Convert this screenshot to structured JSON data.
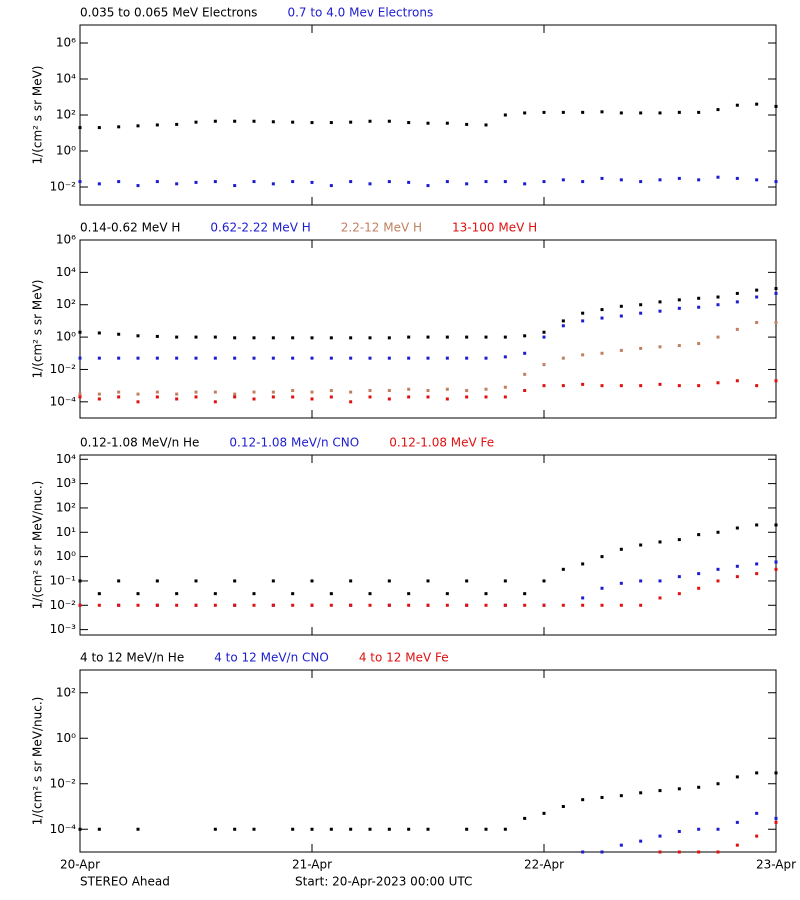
{
  "chart_data": [
    {
      "type": "scatter",
      "log": true,
      "ylabel": "1/(cm² s sr MeV)",
      "xlim": [
        0,
        72
      ],
      "ylim": [
        0.001,
        10000000
      ],
      "yticks": [
        {
          "value": 1000000,
          "label": "10⁶"
        },
        {
          "value": 10000,
          "label": "10⁴"
        },
        {
          "value": 100,
          "label": "10²"
        },
        {
          "value": 1,
          "label": "10⁰"
        },
        {
          "value": 0.01,
          "label": "10⁻²"
        }
      ],
      "x": [
        0,
        2,
        4,
        6,
        8,
        10,
        12,
        14,
        16,
        18,
        20,
        22,
        24,
        26,
        28,
        30,
        32,
        34,
        36,
        38,
        40,
        42,
        44,
        46,
        48,
        50,
        52,
        54,
        56,
        58,
        60,
        62,
        64,
        66,
        68,
        70,
        72
      ],
      "series": [
        {
          "name": "0.035 to 0.065 MeV Electrons",
          "color": "#000000",
          "values": [
            20,
            20,
            22,
            25,
            28,
            30,
            40,
            45,
            45,
            45,
            42,
            40,
            38,
            38,
            40,
            45,
            45,
            38,
            35,
            35,
            30,
            28,
            100,
            130,
            140,
            140,
            140,
            150,
            130,
            130,
            130,
            140,
            140,
            200,
            350,
            400,
            300
          ]
        },
        {
          "name": "0.7 to 4.0 Mev Electrons",
          "color": "#1c1cd0",
          "values": [
            0.02,
            0.015,
            0.02,
            0.012,
            0.02,
            0.015,
            0.018,
            0.02,
            0.012,
            0.02,
            0.015,
            0.02,
            0.018,
            0.012,
            0.02,
            0.015,
            0.02,
            0.018,
            0.012,
            0.02,
            0.015,
            0.02,
            0.02,
            0.015,
            0.02,
            0.025,
            0.02,
            0.03,
            0.025,
            0.02,
            0.025,
            0.03,
            0.025,
            0.035,
            0.03,
            0.025,
            0.02
          ]
        }
      ]
    },
    {
      "type": "scatter",
      "log": true,
      "ylabel": "1/(cm² s sr MeV)",
      "xlim": [
        0,
        72
      ],
      "ylim": [
        1e-05,
        1000000
      ],
      "yticks": [
        {
          "value": 1000000,
          "label": "10⁶"
        },
        {
          "value": 10000,
          "label": "10⁴"
        },
        {
          "value": 100,
          "label": "10²"
        },
        {
          "value": 1,
          "label": "10⁰"
        },
        {
          "value": 0.01,
          "label": "10⁻²"
        },
        {
          "value": 0.0001,
          "label": "10⁻⁴"
        }
      ],
      "x": [
        0,
        2,
        4,
        6,
        8,
        10,
        12,
        14,
        16,
        18,
        20,
        22,
        24,
        26,
        28,
        30,
        32,
        34,
        36,
        38,
        40,
        42,
        44,
        46,
        48,
        50,
        52,
        54,
        56,
        58,
        60,
        62,
        64,
        66,
        68,
        70,
        72
      ],
      "series": [
        {
          "name": "0.14-0.62 MeV H",
          "color": "#000000",
          "values": [
            2,
            1.8,
            1.5,
            1.2,
            1.1,
            1,
            1,
            1,
            0.9,
            0.9,
            0.9,
            0.9,
            0.9,
            0.9,
            0.9,
            0.9,
            0.9,
            1,
            1,
            1,
            1,
            1,
            1,
            1.2,
            2,
            10,
            30,
            50,
            80,
            100,
            150,
            200,
            250,
            300,
            500,
            800,
            1000
          ]
        },
        {
          "name": "0.62-2.22 MeV H",
          "color": "#1c1cd0",
          "values": [
            0.05,
            0.05,
            0.05,
            0.05,
            0.05,
            0.05,
            0.05,
            0.05,
            0.05,
            0.05,
            0.05,
            0.05,
            0.05,
            0.05,
            0.05,
            0.05,
            0.05,
            0.05,
            0.05,
            0.05,
            0.05,
            0.05,
            0.06,
            0.1,
            1,
            5,
            10,
            15,
            20,
            30,
            40,
            60,
            70,
            100,
            150,
            300,
            500
          ]
        },
        {
          "name": "2.2-12 MeV H",
          "color": "#c08060",
          "values": [
            0.0003,
            0.0003,
            0.0004,
            0.0003,
            0.0004,
            0.0003,
            0.0004,
            0.0004,
            0.0003,
            0.0004,
            0.0004,
            0.0005,
            0.0004,
            0.0005,
            0.0004,
            0.0005,
            0.0005,
            0.0006,
            0.0005,
            0.0006,
            0.0005,
            0.0006,
            0.0008,
            0.005,
            0.02,
            0.05,
            0.08,
            0.1,
            0.15,
            0.2,
            0.25,
            0.3,
            0.4,
            1,
            3,
            8,
            8
          ]
        },
        {
          "name": "13-100 MeV H",
          "color": "#e01010",
          "values": [
            0.0002,
            0.00015,
            0.0002,
            0.0001,
            0.0002,
            0.00015,
            0.0002,
            0.0001,
            0.0002,
            0.00015,
            0.0002,
            0.0002,
            0.00015,
            0.0002,
            0.0001,
            0.0002,
            0.00015,
            0.0002,
            0.0002,
            0.00015,
            0.0002,
            0.0002,
            0.0002,
            0.0005,
            0.001,
            0.001,
            0.0012,
            0.001,
            0.001,
            0.001,
            0.0012,
            0.001,
            0.001,
            0.0015,
            0.002,
            0.001,
            0.002
          ]
        }
      ]
    },
    {
      "type": "scatter",
      "log": true,
      "ylabel": "1/(cm² s sr MeV/nuc.)",
      "xlim": [
        0,
        72
      ],
      "ylim": [
        0.0006,
        15000
      ],
      "yticks": [
        {
          "value": 10000,
          "label": "10⁴"
        },
        {
          "value": 1000,
          "label": "10³"
        },
        {
          "value": 100,
          "label": "10²"
        },
        {
          "value": 10,
          "label": "10¹"
        },
        {
          "value": 1,
          "label": "10⁰"
        },
        {
          "value": 0.1,
          "label": "10⁻¹"
        },
        {
          "value": 0.01,
          "label": "10⁻²"
        },
        {
          "value": 0.001,
          "label": "10⁻³"
        }
      ],
      "x": [
        0,
        2,
        4,
        6,
        8,
        10,
        12,
        14,
        16,
        18,
        20,
        22,
        24,
        26,
        28,
        30,
        32,
        34,
        36,
        38,
        40,
        42,
        44,
        46,
        48,
        50,
        52,
        54,
        56,
        58,
        60,
        62,
        64,
        66,
        68,
        70,
        72
      ],
      "series": [
        {
          "name": "0.12-1.08 MeV/n He",
          "color": "#000000",
          "values": [
            0.1,
            0.03,
            0.1,
            0.03,
            0.1,
            0.03,
            0.1,
            0.03,
            0.1,
            0.03,
            0.1,
            0.03,
            0.1,
            0.03,
            0.1,
            0.03,
            0.1,
            0.03,
            0.1,
            0.03,
            0.1,
            0.03,
            0.1,
            0.03,
            0.1,
            0.3,
            0.5,
            1,
            2,
            3,
            4,
            5,
            8,
            10,
            15,
            20,
            20
          ]
        },
        {
          "name": "0.12-1.08 MeV/n CNO",
          "color": "#1c1cd0",
          "values": [
            0.01,
            null,
            0.01,
            null,
            0.01,
            null,
            0.01,
            null,
            0.01,
            null,
            0.01,
            null,
            0.01,
            null,
            0.01,
            null,
            0.01,
            null,
            0.01,
            null,
            0.01,
            null,
            0.01,
            null,
            0.01,
            null,
            0.02,
            0.05,
            0.08,
            0.1,
            0.1,
            0.15,
            0.2,
            0.3,
            0.4,
            0.5,
            0.6
          ]
        },
        {
          "name": "0.12-1.08 MeV Fe",
          "color": "#e01010",
          "values": [
            0.01,
            0.01,
            0.01,
            0.01,
            0.01,
            0.01,
            0.01,
            0.01,
            0.01,
            0.01,
            0.01,
            0.01,
            0.01,
            0.01,
            0.01,
            0.01,
            0.01,
            0.01,
            0.01,
            0.01,
            0.01,
            0.01,
            0.01,
            0.01,
            0.01,
            0.01,
            0.01,
            0.01,
            0.01,
            0.01,
            0.02,
            0.03,
            0.05,
            0.1,
            0.15,
            0.2,
            0.3
          ]
        }
      ]
    },
    {
      "type": "scatter",
      "log": true,
      "ylabel": "1/(cm² s sr MeV/nuc.)",
      "xlim": [
        0,
        72
      ],
      "ylim": [
        1e-05,
        1000
      ],
      "yticks": [
        {
          "value": 100,
          "label": "10²"
        },
        {
          "value": 1,
          "label": "10⁰"
        },
        {
          "value": 0.01,
          "label": "10⁻²"
        },
        {
          "value": 0.0001,
          "label": "10⁻⁴"
        }
      ],
      "xticks": [
        {
          "value": 0,
          "label": "20-Apr"
        },
        {
          "value": 24,
          "label": "21-Apr"
        },
        {
          "value": 48,
          "label": "22-Apr"
        },
        {
          "value": 72,
          "label": "23-Apr"
        }
      ],
      "x": [
        0,
        2,
        4,
        6,
        8,
        10,
        12,
        14,
        16,
        18,
        20,
        22,
        24,
        26,
        28,
        30,
        32,
        34,
        36,
        38,
        40,
        42,
        44,
        46,
        48,
        50,
        52,
        54,
        56,
        58,
        60,
        62,
        64,
        66,
        68,
        70,
        72
      ],
      "series": [
        {
          "name": "4 to 12 MeV/n He",
          "color": "#000000",
          "values": [
            0.0001,
            0.0001,
            null,
            0.0001,
            null,
            null,
            null,
            0.0001,
            0.0001,
            0.0001,
            null,
            0.0001,
            0.0001,
            0.0001,
            0.0001,
            0.0001,
            0.0001,
            0.0001,
            0.0001,
            null,
            0.0001,
            0.0001,
            0.0001,
            0.0003,
            0.0005,
            0.001,
            0.002,
            0.0025,
            0.003,
            0.004,
            0.005,
            0.006,
            0.007,
            0.01,
            0.02,
            0.03,
            0.03
          ]
        },
        {
          "name": "4 to 12 MeV/n CNO",
          "color": "#1c1cd0",
          "values": [
            null,
            null,
            null,
            null,
            null,
            null,
            null,
            null,
            null,
            null,
            null,
            null,
            null,
            null,
            null,
            null,
            null,
            null,
            null,
            null,
            null,
            null,
            null,
            null,
            null,
            null,
            1e-05,
            1e-05,
            2e-05,
            3e-05,
            5e-05,
            8e-05,
            0.0001,
            0.0001,
            0.0002,
            0.0005,
            0.0003
          ]
        },
        {
          "name": "4 to 12 MeV Fe",
          "color": "#e01010",
          "values": [
            null,
            null,
            null,
            null,
            null,
            null,
            null,
            null,
            null,
            null,
            null,
            null,
            null,
            null,
            null,
            null,
            null,
            null,
            null,
            null,
            null,
            null,
            null,
            null,
            null,
            null,
            null,
            null,
            null,
            null,
            1e-05,
            1e-05,
            1e-05,
            1e-05,
            2e-05,
            5e-05,
            0.0002
          ]
        }
      ]
    }
  ],
  "footer": {
    "left": "STEREO Ahead",
    "center": "Start: 20-Apr-2023 00:00 UTC"
  }
}
